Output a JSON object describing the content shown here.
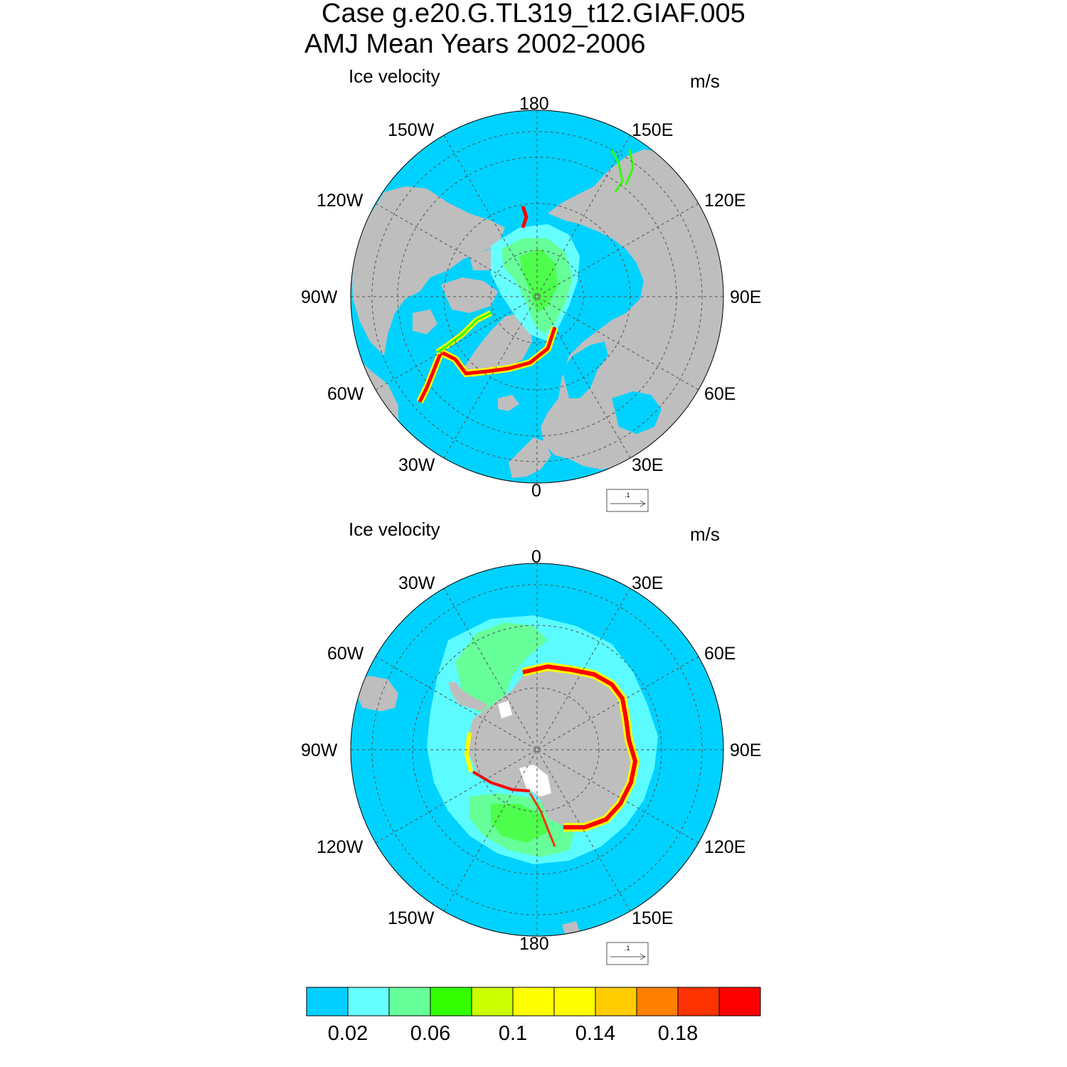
{
  "title": {
    "line1": "Case g.e20.G.TL319_t12.GIAF.005",
    "line2": "AMJ Mean   Years 2002-2006"
  },
  "colors": {
    "ocean": "#00d2ff",
    "land": "#bebebe",
    "grid": "#555555"
  },
  "arctic": {
    "left_title": "Ice velocity",
    "right_title": "m/s",
    "lon_labels": {
      "l180": "180",
      "l150E": "150E",
      "l120E": "120E",
      "l90E": "90E",
      "l60E": "60E",
      "l30E": "30E",
      "l0": "0",
      "l30W": "30W",
      "l60W": "60W",
      "l90W": "90W",
      "l120W": "120W",
      "l150W": "150W"
    },
    "ref_vector": ".1"
  },
  "antarctic": {
    "left_title": "Ice velocity",
    "right_title": "m/s",
    "lon_labels": {
      "l0": "0",
      "l30E": "30E",
      "l60E": "60E",
      "l90E": "90E",
      "l120E": "120E",
      "l150E": "150E",
      "l180": "180",
      "l150W": "150W",
      "l120W": "120W",
      "l90W": "90W",
      "l60W": "60W",
      "l30W": "30W"
    },
    "ref_vector": ".1"
  },
  "colorbar": {
    "colors": [
      "#00cfff",
      "#66ffff",
      "#66ff99",
      "#33ff00",
      "#ccff00",
      "#ffff00",
      "#ffff00",
      "#ffcc00",
      "#ff8000",
      "#ff3300",
      "#ff0000"
    ],
    "labels": [
      "0.02",
      "0.06",
      "0.1",
      "0.14",
      "0.18"
    ]
  }
}
